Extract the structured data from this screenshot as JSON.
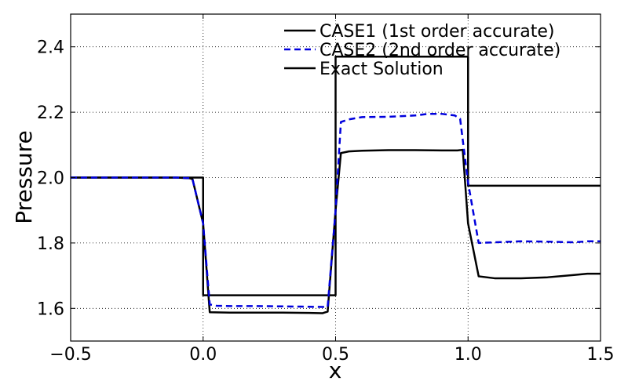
{
  "chart_data": {
    "type": "line",
    "title": "",
    "xlabel": "x",
    "ylabel": "Pressure",
    "xlim": [
      -0.5,
      1.5
    ],
    "ylim": [
      1.5,
      2.5
    ],
    "xticks": [
      -0.5,
      0.0,
      0.5,
      1.0,
      1.5
    ],
    "xtick_labels": [
      "−0.5",
      "0.0",
      "0.5",
      "1.0",
      "1.5"
    ],
    "yticks": [
      1.6,
      1.8,
      2.0,
      2.2,
      2.4
    ],
    "ytick_labels": [
      "1.6",
      "1.8",
      "2.0",
      "2.2",
      "2.4"
    ],
    "grid": true,
    "legend_position": "top-right",
    "series": [
      {
        "name": "CASE1 (1st order accurate)",
        "color": "#000000",
        "linestyle": "solid",
        "x": [
          -0.5,
          -0.1,
          -0.05,
          -0.04,
          0.0,
          0.025,
          0.1,
          0.2,
          0.3,
          0.4,
          0.45,
          0.47,
          0.5,
          0.52,
          0.55,
          0.6,
          0.7,
          0.8,
          0.9,
          0.96,
          0.98,
          1.0,
          1.04,
          1.1,
          1.2,
          1.3,
          1.4,
          1.45,
          1.5
        ],
        "y": [
          2.0,
          2.0,
          1.998,
          1.995,
          1.86,
          1.588,
          1.587,
          1.587,
          1.587,
          1.586,
          1.585,
          1.59,
          1.9,
          2.075,
          2.08,
          2.082,
          2.084,
          2.084,
          2.083,
          2.083,
          2.085,
          1.86,
          1.698,
          1.692,
          1.692,
          1.695,
          1.702,
          1.706,
          1.706
        ]
      },
      {
        "name": "CASE2 (2nd order accurate)",
        "color": "#0000dd",
        "linestyle": "dashed",
        "x": [
          -0.5,
          -0.1,
          -0.05,
          -0.04,
          0.0,
          0.025,
          0.05,
          0.1,
          0.2,
          0.3,
          0.4,
          0.47,
          0.5,
          0.52,
          0.55,
          0.6,
          0.7,
          0.8,
          0.85,
          0.9,
          0.95,
          0.97,
          1.0,
          1.04,
          1.1,
          1.2,
          1.3,
          1.4,
          1.45,
          1.5
        ],
        "y": [
          2.0,
          2.0,
          1.998,
          1.995,
          1.86,
          1.612,
          1.608,
          1.607,
          1.607,
          1.606,
          1.605,
          1.604,
          1.9,
          2.17,
          2.178,
          2.185,
          2.186,
          2.19,
          2.195,
          2.195,
          2.19,
          2.18,
          1.985,
          1.8,
          1.802,
          1.805,
          1.804,
          1.802,
          1.805,
          1.805
        ]
      },
      {
        "name": "Exact Solution",
        "color": "#000000",
        "linestyle": "solid",
        "x": [
          -0.5,
          0.0,
          0.0,
          0.5,
          0.5,
          1.0,
          1.0,
          1.5
        ],
        "y": [
          2.0,
          2.0,
          1.64,
          1.64,
          2.37,
          2.37,
          1.975,
          1.975
        ]
      }
    ]
  }
}
